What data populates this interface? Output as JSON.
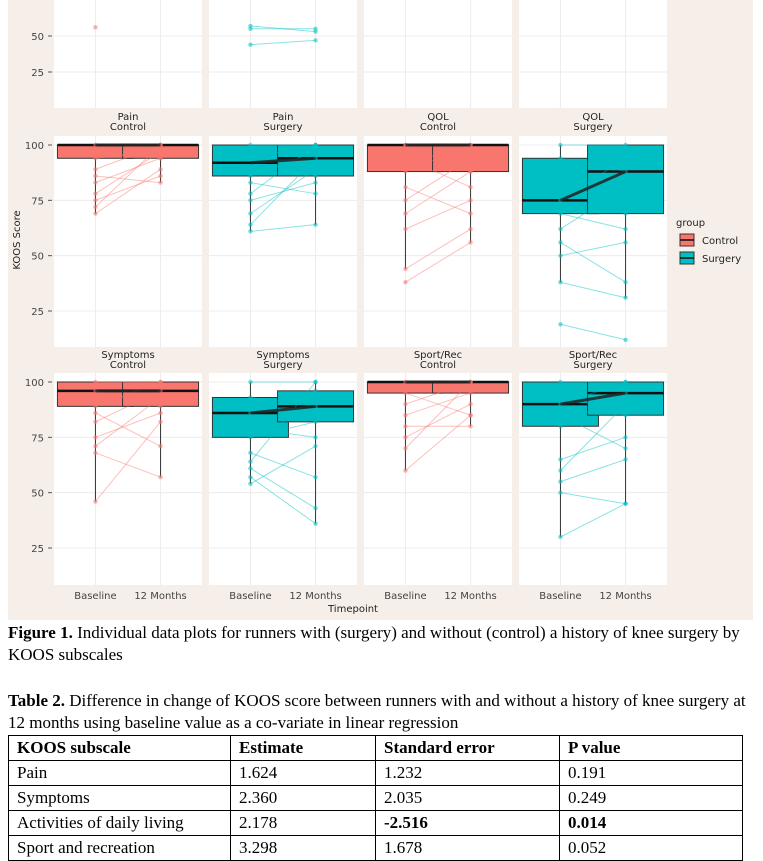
{
  "chart_data": {
    "type": "boxplot",
    "xlabel": "Timepoint",
    "ylabel": "KOOS Score",
    "ylim": [
      10,
      105
    ],
    "yticks": [
      25,
      50,
      75,
      100
    ],
    "categories": [
      "Baseline",
      "12 Months"
    ],
    "legend": {
      "title": "group",
      "position": "right",
      "entries": [
        {
          "label": "Control",
          "color": "#F8766D"
        },
        {
          "label": "Surgery",
          "color": "#00BFC4"
        }
      ]
    },
    "colors": {
      "panel_bg": "#ffffff",
      "outer_bg": "#f6efe9",
      "grid": "#ececec",
      "control": "#F8766D",
      "surgery": "#00BFC4"
    },
    "facets": [
      {
        "title": [
          "Pain",
          "Control"
        ],
        "group": "control",
        "boxes": [
          {
            "q1": 94,
            "median": 100,
            "q3": 100,
            "min": 69,
            "max": 100
          },
          {
            "q1": 94,
            "median": 100,
            "q3": 100,
            "min": 83,
            "max": 100
          }
        ],
        "points": [
          [
            100,
            100
          ],
          [
            97,
            94
          ],
          [
            94,
            97
          ],
          [
            89,
            100
          ],
          [
            86,
            83
          ],
          [
            83,
            94
          ],
          [
            78,
            97
          ],
          [
            75,
            86
          ],
          [
            72,
            100
          ],
          [
            69,
            89
          ]
        ]
      },
      {
        "title": [
          "Pain",
          "Surgery"
        ],
        "group": "surgery",
        "boxes": [
          {
            "q1": 86,
            "median": 92,
            "q3": 100,
            "min": 61,
            "max": 100
          },
          {
            "q1": 86,
            "median": 94,
            "q3": 100,
            "min": 64,
            "max": 100
          }
        ],
        "points": [
          [
            100,
            100
          ],
          [
            97,
            86
          ],
          [
            94,
            100
          ],
          [
            89,
            92
          ],
          [
            86,
            97
          ],
          [
            83,
            78
          ],
          [
            78,
            100
          ],
          [
            75,
            83
          ],
          [
            69,
            89
          ],
          [
            64,
            94
          ],
          [
            61,
            64
          ]
        ]
      },
      {
        "title": [
          "QOL",
          "Control"
        ],
        "group": "control",
        "boxes": [
          {
            "q1": 88,
            "median": 100,
            "q3": 100,
            "min": 44,
            "max": 100
          },
          {
            "q1": 88,
            "median": 100,
            "q3": 100,
            "min": 56,
            "max": 100
          }
        ],
        "points": [
          [
            100,
            100
          ],
          [
            94,
            81
          ],
          [
            88,
            100
          ],
          [
            81,
            69
          ],
          [
            75,
            94
          ],
          [
            69,
            88
          ],
          [
            62,
            75
          ],
          [
            44,
            62
          ],
          [
            38,
            56
          ],
          [
            100,
            88
          ]
        ]
      },
      {
        "title": [
          "QOL",
          "Surgery"
        ],
        "group": "surgery",
        "boxes": [
          {
            "q1": 69,
            "median": 75,
            "q3": 94,
            "min": 38,
            "max": 100
          },
          {
            "q1": 69,
            "median": 88,
            "q3": 100,
            "min": 31,
            "max": 100
          }
        ],
        "points": [
          [
            100,
            100
          ],
          [
            94,
            88
          ],
          [
            88,
            69
          ],
          [
            75,
            94
          ],
          [
            69,
            62
          ],
          [
            62,
            81
          ],
          [
            56,
            38
          ],
          [
            50,
            56
          ],
          [
            38,
            31
          ],
          [
            19,
            12
          ],
          [
            81,
            75
          ]
        ]
      },
      {
        "title": [
          "Symptoms",
          "Control"
        ],
        "group": "control",
        "boxes": [
          {
            "q1": 89,
            "median": 96,
            "q3": 100,
            "min": 46,
            "max": 100
          },
          {
            "q1": 89,
            "median": 96,
            "q3": 100,
            "min": 57,
            "max": 100
          }
        ],
        "points": [
          [
            100,
            100
          ],
          [
            96,
            89
          ],
          [
            89,
            100
          ],
          [
            86,
            71
          ],
          [
            82,
            96
          ],
          [
            75,
            86
          ],
          [
            71,
            93
          ],
          [
            68,
            57
          ],
          [
            46,
            82
          ]
        ]
      },
      {
        "title": [
          "Symptoms",
          "Surgery"
        ],
        "group": "surgery",
        "boxes": [
          {
            "q1": 75,
            "median": 86,
            "q3": 93,
            "min": 54,
            "max": 100
          },
          {
            "q1": 82,
            "median": 89,
            "q3": 96,
            "min": 36,
            "max": 100
          }
        ],
        "points": [
          [
            100,
            100
          ],
          [
            93,
            89
          ],
          [
            86,
            96
          ],
          [
            79,
            75
          ],
          [
            75,
            82
          ],
          [
            68,
            57
          ],
          [
            64,
            100
          ],
          [
            61,
            43
          ],
          [
            57,
            36
          ],
          [
            54,
            71
          ]
        ]
      },
      {
        "title": [
          "Sport/Rec",
          "Control"
        ],
        "group": "control",
        "boxes": [
          {
            "q1": 95,
            "median": 100,
            "q3": 100,
            "min": 60,
            "max": 100
          },
          {
            "q1": 95,
            "median": 100,
            "q3": 100,
            "min": 80,
            "max": 100
          }
        ],
        "points": [
          [
            100,
            100
          ],
          [
            95,
            85
          ],
          [
            90,
            100
          ],
          [
            85,
            95
          ],
          [
            80,
            80
          ],
          [
            75,
            90
          ],
          [
            70,
            100
          ],
          [
            60,
            85
          ]
        ]
      },
      {
        "title": [
          "Sport/Rec",
          "Surgery"
        ],
        "group": "surgery",
        "boxes": [
          {
            "q1": 80,
            "median": 90,
            "q3": 100,
            "min": 30,
            "max": 100
          },
          {
            "q1": 85,
            "median": 95,
            "q3": 100,
            "min": 45,
            "max": 100
          }
        ],
        "points": [
          [
            100,
            100
          ],
          [
            95,
            85
          ],
          [
            90,
            100
          ],
          [
            85,
            70
          ],
          [
            80,
            95
          ],
          [
            65,
            75
          ],
          [
            60,
            90
          ],
          [
            55,
            65
          ],
          [
            50,
            45
          ],
          [
            30,
            45
          ]
        ]
      }
    ],
    "top_partial_points": [
      {
        "panel": 0,
        "values": [
          56
        ]
      },
      {
        "panel": 1,
        "points": [
          [
            57,
            53
          ],
          [
            55,
            55
          ],
          [
            44,
            47
          ]
        ]
      }
    ]
  },
  "figure_caption": {
    "label": "Figure 1.",
    "text": " Individual data plots for runners with (surgery) and without (control) a history of knee surgery by KOOS subscales"
  },
  "table": {
    "title_label": "Table 2.",
    "title_text": " Difference in change of KOOS score between runners with and without a history of knee surgery at 12 months using baseline value as a co-variate in linear regression",
    "headers": [
      "KOOS subscale",
      "Estimate",
      "Standard error",
      "P value"
    ],
    "rows": [
      [
        "Pain",
        "1.624",
        "1.232",
        "0.191"
      ],
      [
        "Symptoms",
        "2.360",
        "2.035",
        "0.249"
      ],
      [
        "Activities of daily living",
        "2.178",
        "-2.516",
        "0.014"
      ],
      [
        "Sport and recreation",
        "3.298",
        "1.678",
        "0.052"
      ]
    ]
  }
}
